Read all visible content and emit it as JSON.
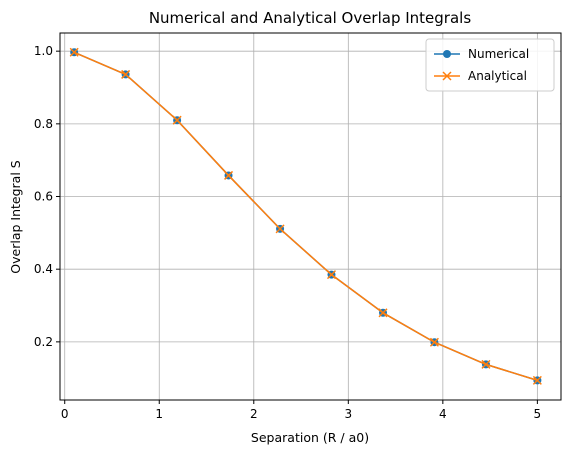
{
  "chart_data": {
    "type": "line",
    "title": "Numerical and Analytical Overlap Integrals",
    "xlabel": "Separation (R / a0)",
    "ylabel": "Overlap Integral S",
    "xlim": [
      -0.05,
      5.25
    ],
    "ylim": [
      0.04,
      1.05
    ],
    "xticks": [
      0,
      1,
      2,
      3,
      4,
      5
    ],
    "xtick_labels": [
      "0",
      "1",
      "2",
      "3",
      "4",
      "5"
    ],
    "yticks": [
      0.2,
      0.4,
      0.6,
      0.8,
      1.0
    ],
    "ytick_labels": [
      "0.2",
      "0.4",
      "0.6",
      "0.8",
      "1.0"
    ],
    "grid": true,
    "legend_position": "top-right",
    "x": [
      0.1,
      0.644,
      1.189,
      1.733,
      2.278,
      2.822,
      3.367,
      3.911,
      4.456,
      5.0
    ],
    "series": [
      {
        "name": "Numerical",
        "color": "#1f77b4",
        "marker": "circle",
        "values": [
          0.997,
          0.936,
          0.81,
          0.658,
          0.511,
          0.385,
          0.28,
          0.199,
          0.138,
          0.094
        ]
      },
      {
        "name": "Analytical",
        "color": "#ff7f0e",
        "marker": "x",
        "values": [
          0.997,
          0.936,
          0.81,
          0.658,
          0.511,
          0.385,
          0.28,
          0.199,
          0.138,
          0.094
        ]
      }
    ]
  }
}
